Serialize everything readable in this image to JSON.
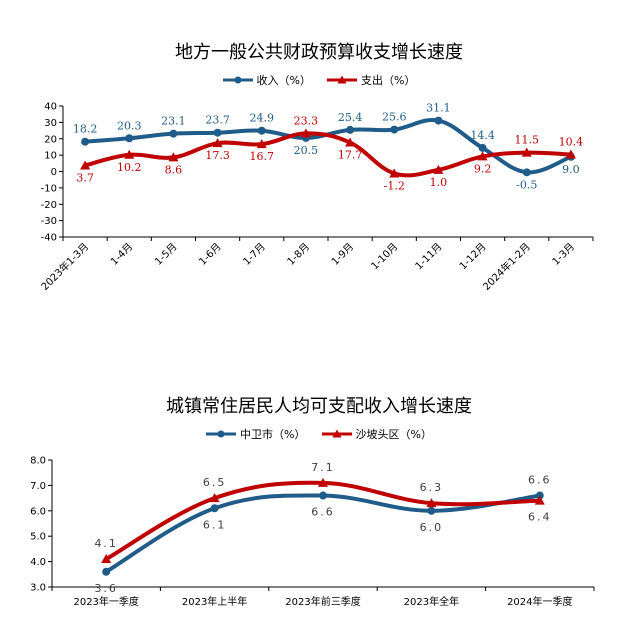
{
  "chart_data": [
    {
      "type": "line",
      "title": "地方一般公共财政预算收支增长速度",
      "categories": [
        "2023年1-3月",
        "1-4月",
        "1-5月",
        "1-6月",
        "1-7月",
        "1-8月",
        "1-9月",
        "1-10月",
        "1-11月",
        "1-12月",
        "2024年1-2月",
        "1-3月"
      ],
      "ylim": [
        -40,
        40
      ],
      "yticks": [
        40,
        30,
        20,
        10,
        0,
        -10,
        -20,
        -30,
        -40
      ],
      "grid": false,
      "legend_position": "top-center",
      "series": [
        {
          "name": "收入（%）",
          "color": "#1f5c8a",
          "marker": "circle",
          "values": [
            18.2,
            20.3,
            23.1,
            23.7,
            24.9,
            20.5,
            25.4,
            25.6,
            31.1,
            14.4,
            -0.5,
            9.0
          ],
          "labels": [
            "18.2",
            "20.3",
            "23.1",
            "23.7",
            "24.9",
            "20.5",
            "25.4",
            "25.6",
            "31.1",
            "14.4",
            "-0.5",
            "9.0"
          ]
        },
        {
          "name": "支出（%）",
          "color": "#c00000",
          "marker": "triangle",
          "values": [
            3.7,
            10.2,
            8.6,
            17.3,
            16.7,
            23.3,
            17.7,
            -1.2,
            1.0,
            9.2,
            11.5,
            10.4
          ],
          "labels": [
            "3.7",
            "10.2",
            "8.6",
            "17.3",
            "16.7",
            "23.3",
            "17.7",
            "-1.2",
            "1.0",
            "9.2",
            "11.5",
            "10.4"
          ]
        }
      ]
    },
    {
      "type": "line",
      "title": "城镇常住居民人均可支配收入增长速度",
      "categories": [
        "2023年一季度",
        "2023年上半年",
        "2023年前三季度",
        "2023年全年",
        "2024年一季度"
      ],
      "ylim": [
        3.0,
        8.0
      ],
      "yticks": [
        "8.0",
        "7.0",
        "6.0",
        "5.0",
        "4.0",
        "3.0"
      ],
      "grid": false,
      "legend_position": "top-center",
      "series": [
        {
          "name": "中卫市（%）",
          "color": "#1f5c8a",
          "marker": "circle",
          "values": [
            3.6,
            6.1,
            6.6,
            6.0,
            6.6
          ],
          "labels": [
            "3.6",
            "6.1",
            "6.6",
            "6.0",
            "6.6"
          ]
        },
        {
          "name": "沙坡头区（%）",
          "color": "#c00000",
          "marker": "triangle",
          "values": [
            4.1,
            6.5,
            7.1,
            6.3,
            6.4
          ],
          "labels": [
            "4.1",
            "6.5",
            "7.1",
            "6.3",
            "6.4"
          ]
        }
      ]
    }
  ]
}
